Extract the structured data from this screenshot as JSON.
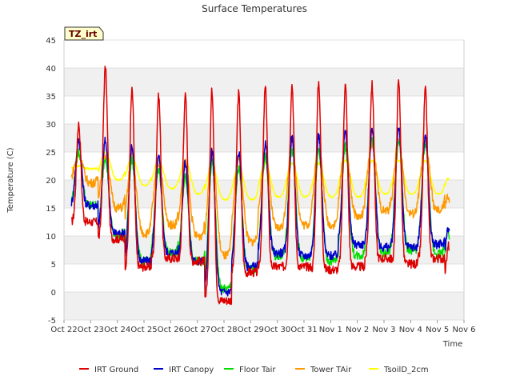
{
  "chart_data": {
    "type": "line",
    "title": "Surface Temperatures",
    "site_tag": "TZ_irt",
    "xlabel": "Time",
    "ylabel": "Temperature (C)",
    "ylim": [
      -5,
      45
    ],
    "yticks": [
      -5,
      0,
      5,
      10,
      15,
      20,
      25,
      30,
      35,
      40,
      45
    ],
    "xlim": [
      0,
      15
    ],
    "xticks": [
      {
        "pos": 0,
        "label": "Oct 22"
      },
      {
        "pos": 1,
        "label": "Oct 23"
      },
      {
        "pos": 2,
        "label": "Oct 24"
      },
      {
        "pos": 3,
        "label": "Oct 25"
      },
      {
        "pos": 4,
        "label": "Oct 26"
      },
      {
        "pos": 5,
        "label": "Oct 27"
      },
      {
        "pos": 6,
        "label": "Oct 28"
      },
      {
        "pos": 7,
        "label": "Oct 29"
      },
      {
        "pos": 8,
        "label": "Oct 30"
      },
      {
        "pos": 9,
        "label": "Oct 31"
      },
      {
        "pos": 10,
        "label": "Nov 1"
      },
      {
        "pos": 11,
        "label": "Nov 2"
      },
      {
        "pos": 12,
        "label": "Nov 3"
      },
      {
        "pos": 13,
        "label": "Nov 4"
      },
      {
        "pos": 14,
        "label": "Nov 5"
      },
      {
        "pos": 15,
        "label": "Nov 6"
      }
    ],
    "grid": true,
    "legend_position": "bottom",
    "series": [
      {
        "name": "IRT Ground",
        "color": "#dd0000",
        "day_x": [
          0.28,
          1.28,
          2.28,
          3.28,
          4.28,
          5.28,
          6.28,
          7.28,
          8.28,
          9.28,
          10.28,
          11.28,
          12.28,
          13.28,
          14.28
        ],
        "day_min": [
          12.5,
          9.5,
          4.5,
          6,
          5.5,
          -1.5,
          3.5,
          4.5,
          4.5,
          4,
          4.5,
          6,
          5,
          6,
          2.5
        ],
        "day_max": [
          30,
          40,
          36,
          35,
          35,
          36,
          35.5,
          36.5,
          37,
          37.5,
          37,
          37,
          37.5,
          36,
          36.5
        ],
        "end": 7.5
      },
      {
        "name": "IRT Canopy",
        "color": "#0000cc",
        "day_x": [
          0.28,
          1.28,
          2.28,
          3.28,
          4.28,
          5.28,
          6.28,
          7.28,
          8.28,
          9.28,
          10.28,
          11.28,
          12.28,
          13.28,
          14.28
        ],
        "day_min": [
          15.5,
          10.5,
          5.5,
          7,
          5.5,
          0,
          4.5,
          7,
          6.5,
          6.5,
          8.5,
          8,
          8,
          8.5,
          5.5
        ],
        "day_max": [
          27,
          27,
          26,
          24,
          23,
          25,
          25,
          26.5,
          27.5,
          28,
          28.5,
          29,
          29.5,
          28,
          28
        ],
        "end": 10.5
      },
      {
        "name": "Floor Tair",
        "color": "#00dd00",
        "day_x": [
          0.28,
          1.28,
          2.28,
          3.28,
          4.28,
          5.28,
          6.28,
          7.28,
          8.28,
          9.28,
          10.28,
          11.28,
          12.28,
          13.28,
          14.28
        ],
        "day_min": [
          15.5,
          10,
          5.5,
          7,
          5.5,
          0.5,
          4,
          6.5,
          6,
          5.5,
          6.5,
          7,
          7.5,
          7,
          5
        ],
        "day_max": [
          25,
          24,
          23.5,
          22,
          20.5,
          23,
          22,
          24,
          25.5,
          25.5,
          26,
          27.5,
          27,
          26.5,
          25
        ],
        "end": 10
      },
      {
        "name": "Tower TAir",
        "color": "#ff9900",
        "day_x": [
          0.28,
          1.28,
          2.28,
          3.28,
          4.28,
          5.28,
          6.28,
          7.28,
          8.28,
          9.28,
          10.28,
          11.28,
          12.28,
          13.28,
          14.28
        ],
        "day_min": [
          19.5,
          15,
          10.5,
          12,
          10,
          6.5,
          9,
          11.5,
          12,
          12,
          13.5,
          14.5,
          14,
          14.5,
          11.5
        ],
        "day_max": [
          24.5,
          24.5,
          24,
          23,
          23,
          25,
          24,
          24.5,
          25.5,
          26,
          26,
          26.5,
          27,
          26.5,
          26
        ],
        "end": 16
      },
      {
        "name": "TsoilD_2cm",
        "color": "#ffff00",
        "day_x": [
          0.28,
          1.28,
          2.28,
          3.28,
          4.28,
          5.28,
          6.28,
          7.28,
          8.28,
          9.28,
          10.28,
          11.28,
          12.28,
          13.28,
          14.28
        ],
        "day_min": [
          22,
          20,
          19,
          18.5,
          17.5,
          16.5,
          16.5,
          17,
          17,
          17,
          17,
          17.5,
          17.5,
          17.5,
          16.5
        ],
        "day_max": [
          22.5,
          25,
          24,
          23.5,
          23.5,
          22.5,
          22.5,
          23,
          23,
          23,
          23.5,
          23.5,
          23.5,
          23.5,
          23
        ],
        "end": 20
      }
    ]
  }
}
